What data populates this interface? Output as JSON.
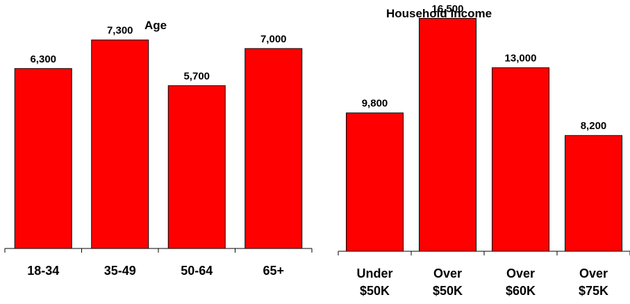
{
  "chart_data": [
    {
      "type": "bar",
      "title": "Age",
      "categories": [
        [
          "18-34"
        ],
        [
          "35-49"
        ],
        [
          "50-64"
        ],
        [
          "65+"
        ]
      ],
      "values": [
        6300,
        7300,
        5700,
        7000
      ],
      "value_labels": [
        "6,300",
        "7,300",
        "5,700",
        "7,000"
      ],
      "ylim": [
        0,
        8700
      ],
      "grid": false,
      "bar_color": "#ff0000"
    },
    {
      "type": "bar",
      "title": "Household Income",
      "categories": [
        [
          "Under",
          "$50K"
        ],
        [
          "Over",
          "$50K"
        ],
        [
          "Over",
          "$60K"
        ],
        [
          "Over",
          "$75K"
        ]
      ],
      "values": [
        9800,
        16500,
        13000,
        8200
      ],
      "value_labels": [
        "9,800",
        "16,500",
        "13,000",
        "8,200"
      ],
      "ylim": [
        0,
        17800
      ],
      "grid": false,
      "bar_color": "#ff0000"
    }
  ]
}
